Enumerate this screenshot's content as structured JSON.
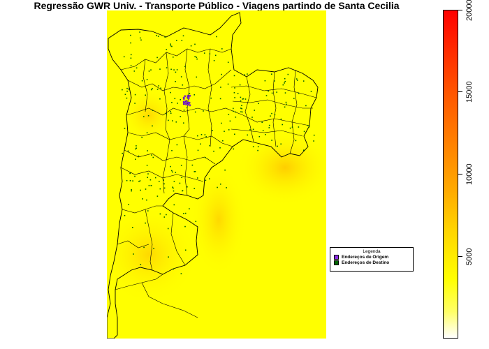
{
  "title": "Regressão GWR Univ. - Transporte Público - Viagens partindo de Santa Cecilia",
  "legend": {
    "title": "Legenda",
    "items": [
      {
        "label": "Endereços de Origem",
        "color": "#8a2be2"
      },
      {
        "label": "Endereços de Destino",
        "color": "#006400"
      }
    ]
  },
  "colorbar": {
    "min": 0,
    "max": 20000,
    "ticks": [
      "5000",
      "10000",
      "15000",
      "20000"
    ],
    "tick_values": [
      5000,
      10000,
      15000,
      20000
    ],
    "low_color": "#ffffff",
    "high_color": "#ff0000"
  },
  "colors": {
    "map_base": "#ffff00",
    "map_warm": "#ffd400",
    "boundary": "#000000",
    "origin_point": "#8a2be2",
    "destination_point": "#006400"
  }
}
